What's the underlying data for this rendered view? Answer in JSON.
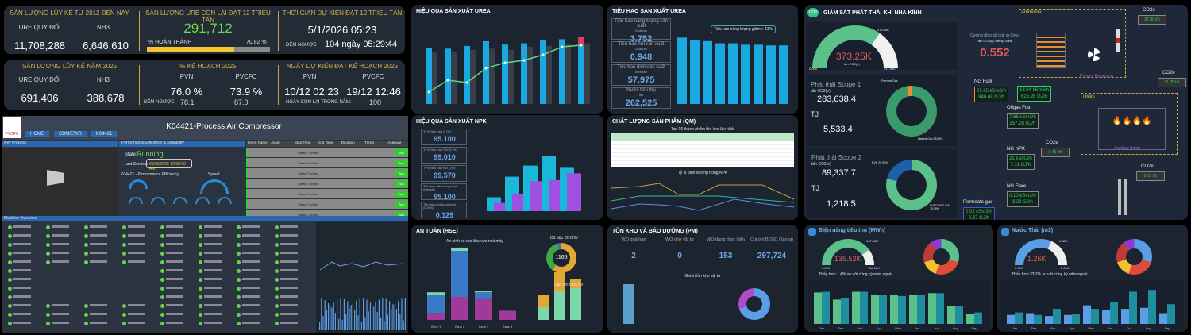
{
  "production": {
    "cum_title": "SẢN LƯỢNG LŨY KẾ TỪ 2012 ĐẾN NAY",
    "ure_label": "URE QUY ĐỔI",
    "nh3_label": "NH3",
    "cum_ure": "11,708,288",
    "cum_nh3": "6,646,610",
    "remain_title": "SẢN LƯỢNG URE CÒN LẠI ĐẠT 12 TRIỆU TẤN",
    "remain_value": "291,712",
    "complete_label": "% HOÀN THÀNH",
    "complete_pct": "70.82 %",
    "complete_fraction": 0.7082,
    "eta_title": "THỜI GIAN DỰ KIẾN ĐẠT 12 TRIỆU TẤN",
    "eta_value": "5/1/2026 05:23",
    "countdown_label": "ĐẾM NGƯỢC",
    "countdown_value": "104 ngày 05:29:44",
    "year_title": "SẢN LƯỢNG LŨY KẾ NĂM 2025",
    "year_ure": "691,406",
    "year_nh3": "388,678",
    "plan_title": "% KẾ HOẠCH 2025",
    "pvn": "PVN",
    "pvcfc": "PVCFC",
    "plan_pvn": "76.0 %",
    "plan_pvcfc": "73.9 %",
    "plan_countdown_label": "ĐẾM NGƯỢC:",
    "plan_pvn_days": "78.1",
    "plan_pvcfc_days": "87.0",
    "days_unit": "Ngày",
    "plan_date_title": "NGÀY DỰ KIẾN ĐẠT KẾ HOẠCH 2025",
    "date_pvn": "10/12 02:23",
    "date_pvcfc": "19/12 12:46",
    "days_left_label": "NGÀY CÒN LẠI TRONG NĂM:",
    "days_left": "100"
  },
  "scada": {
    "title": "K04421-Process Air Compressor",
    "logo": "PVCFC",
    "tabs": [
      "HOME",
      "CBM/EWS",
      "K04421"
    ],
    "key_process": "Key Process",
    "process_btn": "PROCESS AIR COMPRESSOR",
    "perf_title": "Performance Efficiency & Reliability",
    "state_label": "State:",
    "state": "Running",
    "run_hours_label": "Run Hours:",
    "last_service_label": "Last Service:",
    "last_service": "09/29/2025 12:00:00 AM",
    "perf_eff": "K04421 - Performance Efficiency",
    "speed": "Speed",
    "machine_overview": "Machine Overview",
    "event_headers": [
      "Event Name",
      "Asset",
      "Start Time",
      "End Time",
      "Duration",
      "Trend",
      "Acknowl"
    ],
    "event_asset": "Steam Turbine",
    "ack": "Ack",
    "event_count": 7
  },
  "urea_eff": {
    "title": "HIỆU QUẢ SẢN XUẤT UREA",
    "bars": [
      0.83,
      0.82,
      0.86,
      0.93,
      0.88,
      0.9,
      0.95,
      0.96,
      1.0
    ],
    "gray": [
      0.78,
      0.78,
      0.8,
      0.82,
      0.8,
      0.85,
      0.86,
      0.88,
      0.9
    ],
    "line": [
      0.15,
      0.3,
      0.27,
      0.45,
      0.52,
      0.55,
      0.62,
      0.72,
      0.74
    ]
  },
  "urea_cons": {
    "title": "TIÊU HAO SẢN XUẤT UREA",
    "items": [
      {
        "label": "Tiêu hao năng lượng sản xuất",
        "unit": "Gcal/tấn",
        "value": "3.752"
      },
      {
        "label": "Tiêu hao hơi sản xuất",
        "unit": "Gcal/tấn",
        "value": "0.948"
      },
      {
        "label": "Tiêu hao điện sản xuất",
        "unit": "kWh/tấn",
        "value": "57.975"
      },
      {
        "label": "Nước tiêu thụ",
        "unit": "m3",
        "value": "262,525"
      }
    ],
    "note": "Tiêu hao năng lượng giảm > 11%",
    "bars": [
      0.93,
      0.9,
      0.88,
      0.85,
      0.85,
      0.83,
      0.83,
      0.82,
      0.82
    ]
  },
  "npk": {
    "title": "HIỆU QUẢ SẢN XUẤT NPK",
    "items": [
      {
        "label": "Tỷ lệ tiêu hao N (%)",
        "value": "95.100"
      },
      {
        "label": "Tỷ lệ tiêu hao P2O5 (%)",
        "value": "99.010"
      },
      {
        "label": "Tỷ lệ tiêu hao K2O (%)",
        "value": "99.570"
      },
      {
        "label": "Tiêu hao điện trung bình",
        "unit": "(kWh/tấn)",
        "value": "95.100"
      },
      {
        "label": "Tiêu hao khí trung bình",
        "unit": "(GJ/tấn)",
        "value": "0.129"
      }
    ],
    "bars": [
      0.25,
      0.62,
      0.82,
      1.0,
      0.78
    ],
    "bars2": [
      0.15,
      0.3,
      0.54,
      0.56,
      0.68
    ]
  },
  "qm": {
    "title": "CHẤT LƯỢNG SẢN PHẨM (QM)",
    "table_title": "Top 10 thành phẩm tồn kho lâu nhất",
    "chart_title": "Tỷ lệ dinh dưỡng trong NPK"
  },
  "hse": {
    "title": "AN TOÀN (HSE)",
    "chart_title": "An ninh ra vào khu vực nhà máy",
    "zones": [
      "Zone 1",
      "Zone 2",
      "Zone 3",
      "Zone 4"
    ],
    "blue": [
      40,
      100,
      15,
      0
    ],
    "purple": [
      15,
      50,
      45,
      20
    ],
    "green": [
      5,
      7,
      2,
      0
    ],
    "donut_title": "Dữ liệu CBCNV",
    "donut_value": "1165",
    "stack_title": "Cân lực CBCNV"
  },
  "pm": {
    "title": "TỒN KHO VÀ BẢO DƯỠNG (PM)",
    "kpis": [
      {
        "label": "WO quá hạn",
        "value": "2"
      },
      {
        "label": "WO chờ vật tư",
        "value": "0"
      },
      {
        "label": "WO đang thực hiện",
        "value": "153"
      },
      {
        "label": "Chi phí BDSC / tấn sp",
        "value": "297,724"
      }
    ],
    "chart_title": "Giá trị tồn kho vật tư"
  },
  "ghg": {
    "title": "GIÁM SÁT PHÁT THẢI KHÍ NHÀ KÍNH",
    "gauge_value": "373.25K",
    "gauge_unit": "tấn CO2(e)",
    "gauge_min": "0.00K",
    "gauge_max": "541.65K",
    "gauge_target": "375.65K",
    "gauge_fraction": 0.69,
    "scope1_title": "Phát thải Scope 1",
    "unit": "tấn CO2(e)",
    "scope1_value": "283,638.4",
    "tj": "TJ",
    "scope1_tj": "5,533.4",
    "permeat": "Permeat Gas",
    "permeat_pct": "1.10%",
    "natural": "Natural Gas 98.88%",
    "scope2_title": "Phát thải Scope 2",
    "scope2_value": "89,337.7",
    "scope2_tj": "1,218.5",
    "evn": "EVN 20.91%",
    "pvpower": "PVPOWER CM2 79.09%",
    "intensity_label": "Cường độ phát thải sx Urea",
    "intensity_unit": "tấn CO2(e)/ tấn sp Urea",
    "intensity": "0.552",
    "ammonia": "Ammonia",
    "utility": "Utility",
    "primary": "Primary Reforming",
    "boiler": "Auxiliary Boiler",
    "co2e": "CO2e",
    "co2_vals": [
      "37.80 t/h",
      "11.25 t/h",
      "0.40 t/h",
      "0.19 t/h"
    ],
    "ng_fuel": "NG Fuel",
    "ng_fuel_vals": [
      "25.05 kSm3/h",
      "840.68 GJ/h"
    ],
    "flow1": [
      "18.94 kSm3/h",
      "625.28 GJ/h"
    ],
    "offgas": "Offgas Fuel",
    "offgas_vals": [
      "7.66 kSm3/h",
      "257.28 GJ/h"
    ],
    "ngnpk": "NG NPK",
    "ngnpk_vals": [
      "21 kSm3/h",
      "7.11 GJ/h"
    ],
    "flare": "NG Flare",
    "flare_vals": [
      "0.10 kSm3/h",
      "3.29 GJ/h"
    ],
    "permeate": "Permeate gas",
    "permeate_vals": [
      "0.02 kSm3/h",
      "0.37 GJ/h"
    ]
  },
  "power": {
    "title": "Điện năng tiêu thụ (MWh)",
    "gauge_value": "135.52K",
    "gauge_min": "0.00K",
    "gauge_max": "168.18K",
    "gauge_target": "137.36K",
    "gauge_fraction": 0.8,
    "note": "Thấp hơn 1.4% so với cùng kỳ năm ngoái",
    "months": [
      "Jan",
      "Feb",
      "Mar",
      "Apr",
      "May",
      "Jun",
      "Jul",
      "Aug",
      "Sep"
    ],
    "this_year": [
      0.88,
      0.68,
      0.9,
      0.82,
      0.82,
      0.82,
      0.86,
      0.5,
      0.28
    ],
    "last_year": [
      0.9,
      0.72,
      0.9,
      0.82,
      0.78,
      0.82,
      0.86,
      0.5,
      0.32
    ],
    "colors": [
      "#5cc08a",
      "#1f8fa0"
    ]
  },
  "water": {
    "title": "Nước Thải (m3)",
    "gauge_value": "1.26K",
    "gauge_min": "0.00K",
    "gauge_max": "2.00K",
    "gauge_target": "1.88K",
    "gauge_fraction": 0.63,
    "note": "Thấp hơn 33.2% so với cùng kỳ năm ngoái",
    "months": [
      "Jan",
      "Feb",
      "Mar",
      "Apr",
      "May",
      "Jun",
      "Jul",
      "Aug",
      "Sep"
    ],
    "this_year": [
      0.25,
      0.3,
      0.22,
      0.25,
      0.52,
      0.4,
      0.42,
      0.45,
      0.3
    ],
    "last_year": [
      0.32,
      0.25,
      0.42,
      0.28,
      0.42,
      0.62,
      0.9,
      0.95,
      0.55
    ],
    "colors": [
      "#5b9ee8",
      "#1f8fa0"
    ]
  }
}
